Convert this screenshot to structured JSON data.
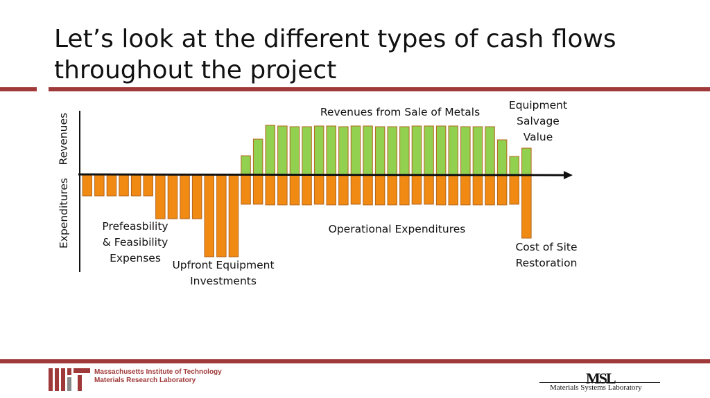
{
  "slide": {
    "title": "Let’s look at the different types of cash flows throughout the project"
  },
  "labels": {
    "revenues_axis": "Revenues",
    "expenditures_axis": "Expenditures",
    "revenues_metals": "Revenues from Sale of Metals",
    "salvage_line1": "Equipment",
    "salvage_line2": "Salvage",
    "salvage_line3": "Value",
    "prefeas_line1": "Prefeasbility",
    "prefeas_line2": "& Feasibility",
    "prefeas_line3": "Expenses",
    "upfront_line1": "Upfront Equipment",
    "upfront_line2": "Investments",
    "opex": "Operational Expenditures",
    "restoration_line1": "Cost of Site",
    "restoration_line2": "Restoration"
  },
  "footer": {
    "institution": "Massachusetts Institute of Technology",
    "lab": "Materials Research Laboratory",
    "msl_logo": "MSL",
    "msl_name": "Materials Systems Laboratory"
  },
  "colors": {
    "accent": "#a03a3a",
    "revenue_fill": "#92d050",
    "expense_fill": "#f08a12",
    "bar_stroke": "#b5651d"
  },
  "chart_data": {
    "type": "bar",
    "revenues": [
      0,
      0,
      0,
      0,
      0,
      0,
      0,
      0,
      0,
      0,
      0,
      0,
      0,
      28,
      52,
      72,
      71,
      70,
      70,
      71,
      71,
      70,
      71,
      71,
      70,
      70,
      70,
      71,
      71,
      71,
      71,
      70,
      70,
      70,
      51,
      27,
      39
    ],
    "expenditures": [
      -30,
      -30,
      -30,
      -30,
      -30,
      -30,
      -63,
      -63,
      -63,
      -63,
      -118,
      -118,
      -118,
      -42,
      -42,
      -43,
      -43,
      -43,
      -43,
      -42,
      -43,
      -43,
      -42,
      -43,
      -43,
      -43,
      -43,
      -42,
      -42,
      -43,
      -43,
      -43,
      -43,
      -43,
      -43,
      -42,
      -91
    ]
  }
}
